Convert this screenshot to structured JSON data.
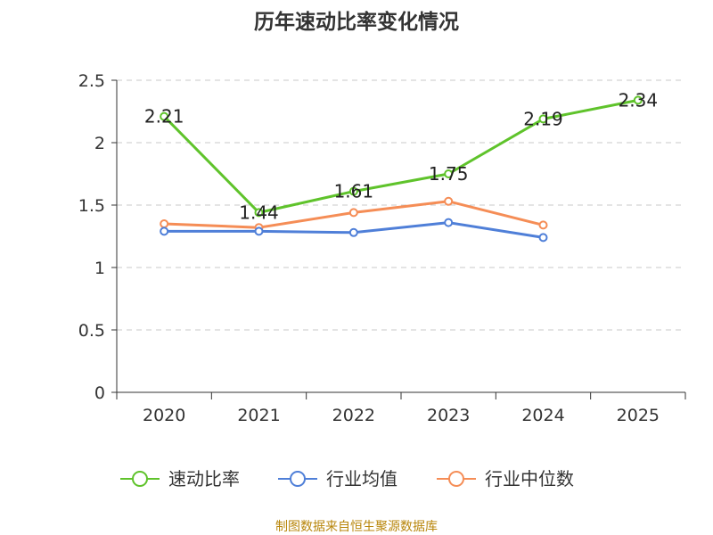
{
  "chart_data": {
    "type": "line",
    "title": "历年速动比率变化情况",
    "categories": [
      "2020",
      "2021",
      "2022",
      "2023",
      "2024",
      "2025"
    ],
    "ylim": [
      0,
      2.5
    ],
    "yticks": [
      "0",
      "0.5",
      "1",
      "1.5",
      "2",
      "2.5"
    ],
    "ytick_values": [
      0,
      0.5,
      1,
      1.5,
      2,
      2.5
    ],
    "grid": true,
    "legend_position": "bottom",
    "series": [
      {
        "name": "速动比率",
        "color": "#5fc32b",
        "values": [
          2.21,
          1.44,
          1.61,
          1.75,
          2.19,
          2.34
        ],
        "labels": [
          "2.21",
          "1.44",
          "1.61",
          "1.75",
          "2.19",
          "2.34"
        ]
      },
      {
        "name": "行业均值",
        "color": "#4f7fd8",
        "values": [
          1.29,
          1.29,
          1.28,
          1.36,
          1.24,
          null
        ]
      },
      {
        "name": "行业中位数",
        "color": "#f58d56",
        "values": [
          1.35,
          1.32,
          1.44,
          1.53,
          1.34,
          null
        ]
      }
    ],
    "source": "制图数据来自恒生聚源数据库"
  }
}
